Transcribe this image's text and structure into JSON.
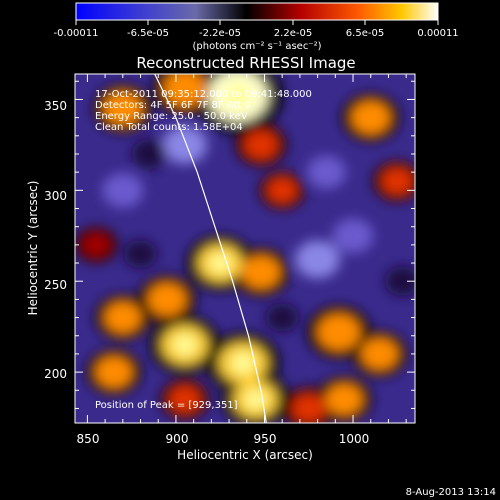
{
  "colorbar": {
    "tick_labels": [
      "-0.00011",
      "-6.5e-05",
      "-2.2e-05",
      "2.2e-05",
      "6.5e-05",
      "0.00011"
    ],
    "units": "(photons cm⁻² s⁻¹ asec⁻²)"
  },
  "image": {
    "title": "Reconstructed RHESSI Image",
    "info_lines": [
      "17-Oct-2011 09:35:12.000 to 09:41:48.000",
      "Detectors: 4F 5F 6F 7F 8F   Att 0",
      "Energy Range: 25.0 - 50.0 keV",
      "Clean    Total counts: 1.58E+04"
    ],
    "peak_label": "Position of Peak = [929,351]",
    "timestamp": "8-Aug-2013 13:14"
  },
  "chart_data": {
    "type": "heatmap",
    "title": "Reconstructed RHESSI Image",
    "xlabel": "Heliocentric X (arcsec)",
    "ylabel": "Heliocentric Y (arcsec)",
    "xlim": [
      843,
      1035
    ],
    "ylim": [
      172,
      364
    ],
    "x_ticks": [
      850,
      900,
      950,
      1000
    ],
    "y_ticks": [
      200,
      250,
      300,
      350
    ],
    "colorbar_range": [
      -0.00011,
      0.00011
    ],
    "peak": [
      929,
      351
    ],
    "limb_curve": [
      [
        888,
        364
      ],
      [
        900,
        340
      ],
      [
        912,
        310
      ],
      [
        922,
        280
      ],
      [
        932,
        250
      ],
      [
        941,
        220
      ],
      [
        948,
        190
      ],
      [
        951,
        172
      ]
    ],
    "hotspots": [
      {
        "x": 935,
        "y": 352,
        "v": 1.0
      },
      {
        "x": 905,
        "y": 356,
        "v": 0.55
      },
      {
        "x": 870,
        "y": 345,
        "v": 0.45
      },
      {
        "x": 1010,
        "y": 340,
        "v": 0.45
      },
      {
        "x": 948,
        "y": 325,
        "v": 0.35
      },
      {
        "x": 1025,
        "y": 305,
        "v": 0.3
      },
      {
        "x": 960,
        "y": 300,
        "v": 0.25
      },
      {
        "x": 925,
        "y": 260,
        "v": 0.6
      },
      {
        "x": 948,
        "y": 255,
        "v": 0.45
      },
      {
        "x": 895,
        "y": 240,
        "v": 0.45
      },
      {
        "x": 870,
        "y": 230,
        "v": 0.4
      },
      {
        "x": 865,
        "y": 200,
        "v": 0.4
      },
      {
        "x": 905,
        "y": 215,
        "v": 0.65
      },
      {
        "x": 938,
        "y": 205,
        "v": 0.7
      },
      {
        "x": 945,
        "y": 185,
        "v": 0.6
      },
      {
        "x": 992,
        "y": 222,
        "v": 0.55
      },
      {
        "x": 1015,
        "y": 210,
        "v": 0.4
      },
      {
        "x": 995,
        "y": 185,
        "v": 0.4
      },
      {
        "x": 975,
        "y": 180,
        "v": 0.35
      },
      {
        "x": 905,
        "y": 185,
        "v": 0.3
      },
      {
        "x": 855,
        "y": 270,
        "v": 0.2
      },
      {
        "x": 905,
        "y": 325,
        "v": -0.6
      },
      {
        "x": 870,
        "y": 300,
        "v": -0.5
      },
      {
        "x": 980,
        "y": 262,
        "v": -0.6
      },
      {
        "x": 1000,
        "y": 275,
        "v": -0.5
      },
      {
        "x": 985,
        "y": 310,
        "v": -0.45
      },
      {
        "x": 880,
        "y": 265,
        "v": -0.3
      },
      {
        "x": 1028,
        "y": 250,
        "v": -0.35
      },
      {
        "x": 960,
        "y": 230,
        "v": -0.3
      },
      {
        "x": 885,
        "y": 320,
        "v": -0.35
      }
    ]
  }
}
